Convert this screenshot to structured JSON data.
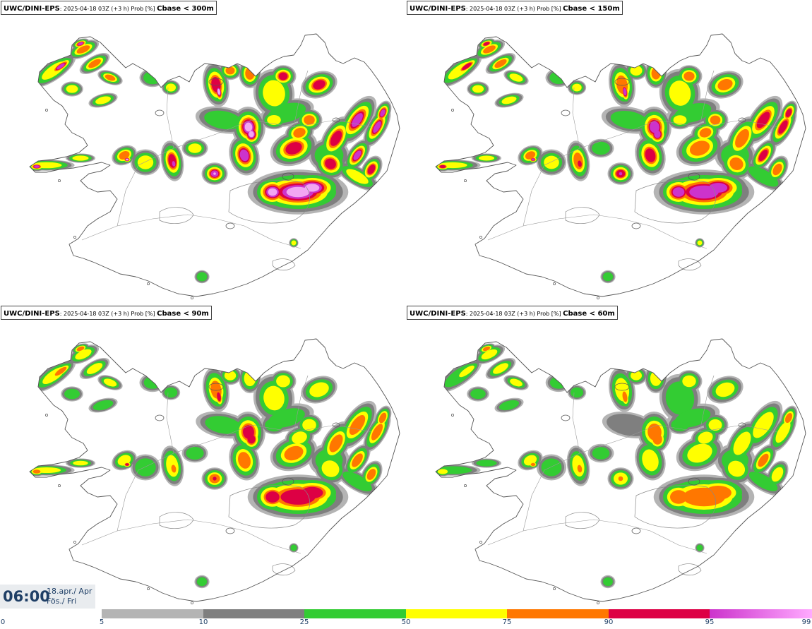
{
  "panels": [
    {
      "model": "UWC/DINI-EPS",
      "meta": ": 2025-04-18 03Z (+3 h) Prob [%] ",
      "variable": "Cbase < 300m",
      "intensity": 1.0
    },
    {
      "model": "UWC/DINI-EPS",
      "meta": ": 2025-04-18 03Z (+3 h) Prob [%] ",
      "variable": "Cbase < 150m",
      "intensity": 0.88
    },
    {
      "model": "UWC/DINI-EPS",
      "meta": ": 2025-04-18 03Z (+3 h) Prob [%] ",
      "variable": "Cbase < 90m",
      "intensity": 0.78
    },
    {
      "model": "UWC/DINI-EPS",
      "meta": ": 2025-04-18 03Z (+3 h) Prob [%] ",
      "variable": "Cbase < 60m",
      "intensity": 0.7
    }
  ],
  "valid_time": {
    "time": "06:00",
    "date": "18.apr./ Apr",
    "day": "Fös./ Fri"
  },
  "legend": {
    "ticks": [
      "0",
      "5",
      "10",
      "25",
      "50",
      "75",
      "90",
      "95",
      "99"
    ],
    "segments": [
      {
        "from": "5",
        "to": "10",
        "color": "#b4b4b4"
      },
      {
        "from": "10",
        "to": "25",
        "color": "#7f7f7f"
      },
      {
        "from": "25",
        "to": "50",
        "color": "#33cc33"
      },
      {
        "from": "50",
        "to": "75",
        "color": "#ffff00"
      },
      {
        "from": "75",
        "to": "90",
        "color": "#ff7700"
      },
      {
        "from": "90",
        "to": "95",
        "color": "#dd0044"
      },
      {
        "from": "95",
        "to": "99",
        "color": "#cc33cc",
        "color_end": "#ffaaff"
      }
    ]
  },
  "colors": {
    "p5": "#b4b4b4",
    "p10": "#7f7f7f",
    "p25": "#33cc33",
    "p50": "#ffff00",
    "p75": "#ff7700",
    "p90": "#dd0044",
    "p95": "#cc33cc",
    "p99": "#f2a6f2",
    "coast": "#555555",
    "text_blue": "#1f3f66"
  }
}
